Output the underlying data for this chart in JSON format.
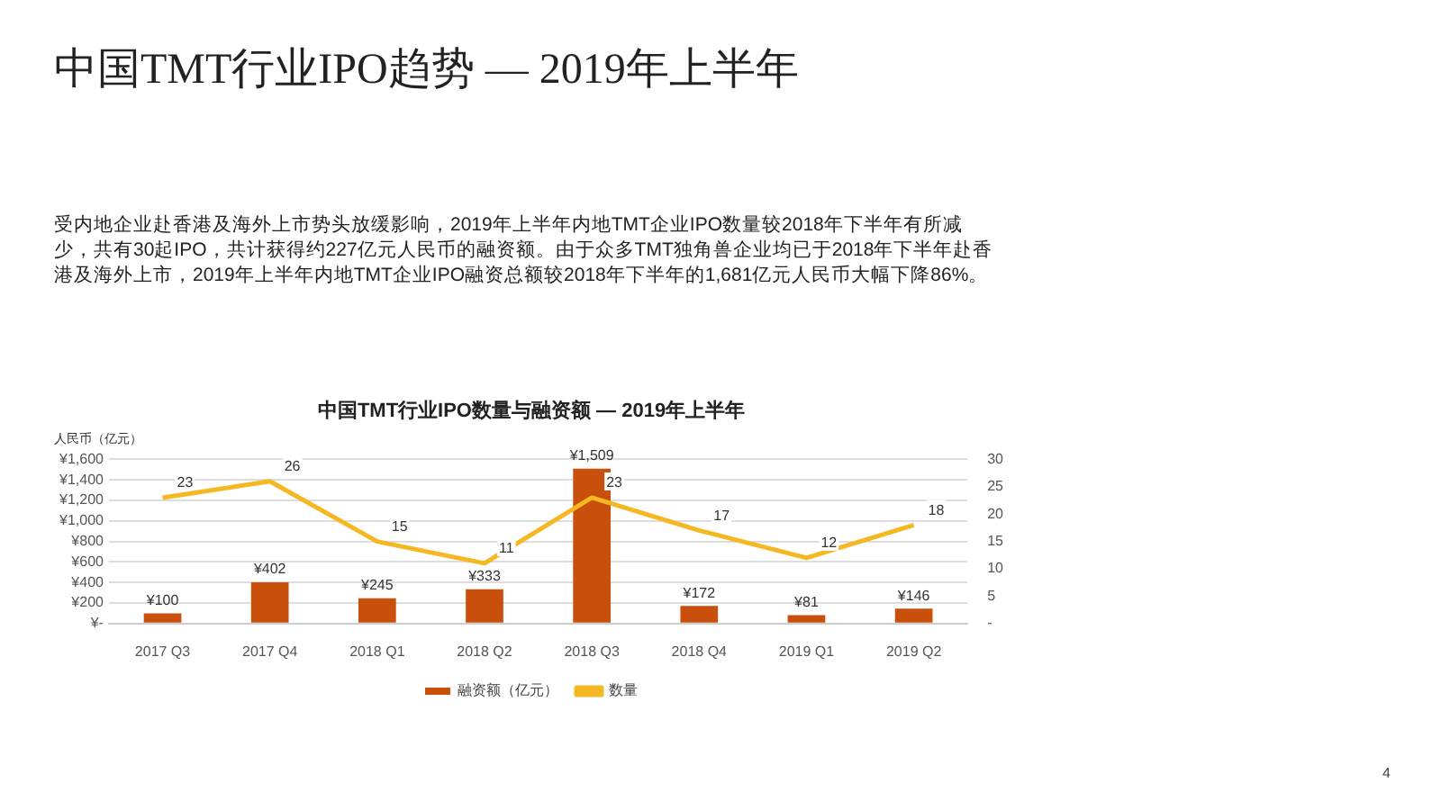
{
  "chart_data": {
    "type": "bar",
    "title": "中国TMT行业IPO数量与融资额 — 2019年上半年",
    "subtitle": "中国TMT行业IPO趋势 — 2019年上半年",
    "ylabel": "人民币（亿元）",
    "annotations": [
      "受内地企业赴香港及海外上市势头放缓影响，2019年上半年内地TMT企业IPO数量较2018年下半年有所减少，共有30起IPO，共计获得约227亿元人民币的融资额。由于众多TMT独角兽企业均已于2018年下半年赴香港及海外上市，2019年上半年内地TMT企业IPO融资总额较2018年下半年的1,681亿元人民币大幅下降86%。",
      "4"
    ],
    "categories": [
      "2017 Q3",
      "2017 Q4",
      "2018 Q1",
      "2018 Q2",
      "2018 Q3",
      "2018 Q4",
      "2019 Q1",
      "2019 Q2"
    ],
    "series": [
      {
        "name": "融资额（亿元）",
        "color": "#c9500c",
        "values": [
          100,
          402,
          245,
          333,
          1509,
          172,
          81,
          146
        ],
        "value_labels": [
          "¥100",
          "¥402",
          "¥245",
          "¥333",
          "¥1,509",
          "¥172",
          "¥81",
          "¥146"
        ]
      },
      {
        "name": "数量",
        "type": "line",
        "axis": "y2",
        "color": "#f5b722",
        "marker": "none",
        "values": [
          23,
          26,
          15,
          11,
          23,
          17,
          12,
          18
        ],
        "value_labels": [
          "23",
          "26",
          "15",
          "11",
          "23",
          "17",
          "12",
          "18"
        ]
      }
    ],
    "ylim": [
      0,
      1600
    ],
    "yticks": [
      {
        "value": 0,
        "label": "¥-"
      },
      {
        "value": 200,
        "label": "¥200"
      },
      {
        "value": 400,
        "label": "¥400"
      },
      {
        "value": 600,
        "label": "¥600"
      },
      {
        "value": 800,
        "label": "¥800"
      },
      {
        "value": 1000,
        "label": "¥1,000"
      },
      {
        "value": 1200,
        "label": "¥1,200"
      },
      {
        "value": 1400,
        "label": "¥1,400"
      },
      {
        "value": 1600,
        "label": "¥1,600"
      }
    ],
    "y2lim": [
      0,
      30
    ],
    "y2ticks": [
      {
        "value": 0,
        "label": "-"
      },
      5,
      10,
      15,
      20,
      25,
      30
    ],
    "grid": "y",
    "legend": "bottom"
  }
}
